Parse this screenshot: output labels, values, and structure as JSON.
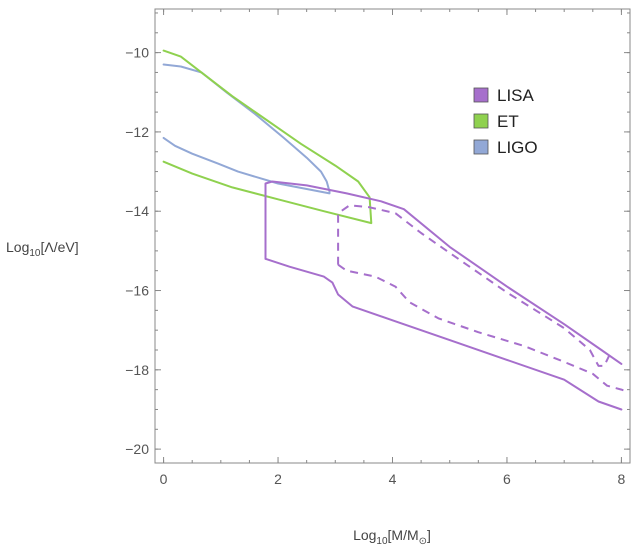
{
  "chart_data": {
    "type": "line",
    "title": "",
    "xlabel": {
      "prefix": "Log",
      "sub": "10",
      "rest": "[M/M",
      "sun": "⊙",
      "close": "]"
    },
    "ylabel": {
      "prefix": "Log",
      "sub": "10",
      "rest": "[Λ/eV]"
    },
    "xlim": [
      -0.15,
      8.15
    ],
    "ylim": [
      -20.35,
      -8.9
    ],
    "xticks": [
      0,
      2,
      4,
      6,
      8
    ],
    "yticks": [
      -10,
      -12,
      -14,
      -16,
      -18,
      -20
    ],
    "xtick_labels": [
      "0",
      "2",
      "4",
      "6",
      "8"
    ],
    "ytick_labels": [
      "−10",
      "−12",
      "−14",
      "−16",
      "−18",
      "−20"
    ],
    "minor_x_step": 0.5,
    "minor_y_step": 0.5,
    "grid": false,
    "legend_position": "top-right",
    "colors": {
      "LISA": "#a66fcc",
      "ET": "#8fd14f",
      "LIGO": "#92a8d6"
    },
    "legend": [
      {
        "name": "LISA",
        "color": "#a66fcc"
      },
      {
        "name": "ET",
        "color": "#8fd14f"
      },
      {
        "name": "LIGO",
        "color": "#92a8d6"
      }
    ],
    "series": [
      {
        "name": "LIGO",
        "style": "solid",
        "points": [
          [
            0.0,
            -10.3
          ],
          [
            0.3,
            -10.35
          ],
          [
            0.66,
            -10.5
          ],
          [
            1.1,
            -11.0
          ],
          [
            1.6,
            -11.55
          ],
          [
            2.1,
            -12.15
          ],
          [
            2.5,
            -12.65
          ],
          [
            2.75,
            -13.0
          ],
          [
            2.85,
            -13.25
          ],
          [
            2.9,
            -13.5
          ],
          [
            2.9,
            -13.55
          ],
          [
            2.0,
            -13.3
          ],
          [
            1.3,
            -13.0
          ],
          [
            0.95,
            -12.8
          ],
          [
            0.5,
            -12.55
          ],
          [
            0.2,
            -12.35
          ],
          [
            0.0,
            -12.15
          ]
        ]
      },
      {
        "name": "ET",
        "style": "solid",
        "points": [
          [
            0.0,
            -9.95
          ],
          [
            0.3,
            -10.1
          ],
          [
            0.66,
            -10.5
          ],
          [
            1.2,
            -11.1
          ],
          [
            1.8,
            -11.7
          ],
          [
            2.4,
            -12.3
          ],
          [
            3.0,
            -12.85
          ],
          [
            3.4,
            -13.25
          ],
          [
            3.6,
            -13.65
          ],
          [
            3.63,
            -14.3
          ],
          [
            2.8,
            -14.0
          ],
          [
            2.0,
            -13.7
          ],
          [
            1.2,
            -13.4
          ],
          [
            0.5,
            -13.05
          ],
          [
            0.0,
            -12.75
          ]
        ]
      },
      {
        "name": "LISA",
        "style": "solid",
        "points": [
          [
            1.78,
            -15.2
          ],
          [
            1.78,
            -13.3
          ],
          [
            1.9,
            -13.25
          ],
          [
            2.5,
            -13.35
          ],
          [
            3.2,
            -13.55
          ],
          [
            3.8,
            -13.75
          ],
          [
            4.2,
            -13.95
          ],
          [
            5.0,
            -14.9
          ],
          [
            6.0,
            -15.9
          ],
          [
            7.0,
            -16.85
          ],
          [
            7.65,
            -17.5
          ],
          [
            8.0,
            -17.85
          ]
        ]
      },
      {
        "name": "LISA",
        "style": "solid",
        "points": [
          [
            1.78,
            -15.2
          ],
          [
            2.2,
            -15.4
          ],
          [
            2.8,
            -15.65
          ],
          [
            2.95,
            -15.8
          ],
          [
            3.05,
            -16.1
          ],
          [
            3.3,
            -16.4
          ],
          [
            4.0,
            -16.75
          ],
          [
            5.0,
            -17.25
          ],
          [
            6.0,
            -17.75
          ],
          [
            7.0,
            -18.25
          ],
          [
            7.6,
            -18.8
          ],
          [
            8.0,
            -19.0
          ]
        ]
      },
      {
        "name": "LISA",
        "style": "dashed",
        "points": [
          [
            3.05,
            -15.35
          ],
          [
            3.05,
            -14.05
          ],
          [
            3.25,
            -13.85
          ],
          [
            3.6,
            -13.9
          ],
          [
            4.05,
            -14.05
          ],
          [
            4.5,
            -14.55
          ],
          [
            5.0,
            -15.05
          ],
          [
            5.5,
            -15.55
          ],
          [
            6.0,
            -16.05
          ],
          [
            6.5,
            -16.5
          ],
          [
            7.0,
            -16.95
          ],
          [
            7.45,
            -17.5
          ],
          [
            7.6,
            -17.9
          ],
          [
            7.7,
            -17.9
          ],
          [
            7.8,
            -17.6
          ]
        ]
      },
      {
        "name": "LISA",
        "style": "dashed",
        "points": [
          [
            3.05,
            -15.35
          ],
          [
            3.2,
            -15.5
          ],
          [
            3.7,
            -15.65
          ],
          [
            4.05,
            -15.9
          ],
          [
            4.3,
            -16.3
          ],
          [
            4.8,
            -16.7
          ],
          [
            5.5,
            -17.05
          ],
          [
            6.3,
            -17.4
          ],
          [
            7.0,
            -17.8
          ],
          [
            7.5,
            -18.1
          ],
          [
            7.75,
            -18.4
          ],
          [
            8.0,
            -18.5
          ],
          [
            8.1,
            -18.55
          ]
        ]
      }
    ]
  }
}
